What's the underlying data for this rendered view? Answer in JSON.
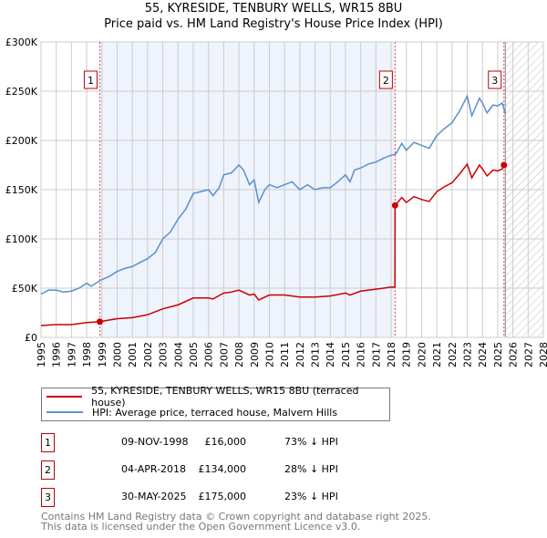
{
  "chart_data": {
    "type": "line",
    "title": "55, KYRESIDE, TENBURY WELLS, WR15 8BU",
    "subtitle": "Price paid vs. HM Land Registry's House Price Index (HPI)",
    "xlim": [
      1995,
      2028
    ],
    "ylim": [
      0,
      300000
    ],
    "x_ticks": [
      "1995",
      "1996",
      "1997",
      "1998",
      "1999",
      "2000",
      "2001",
      "2002",
      "2003",
      "2004",
      "2005",
      "2006",
      "2007",
      "2008",
      "2009",
      "2010",
      "2011",
      "2012",
      "2013",
      "2014",
      "2015",
      "2016",
      "2017",
      "2018",
      "2019",
      "2020",
      "2021",
      "2022",
      "2023",
      "2024",
      "2025",
      "2026",
      "2027",
      "2028"
    ],
    "y_ticks": [
      {
        "v": 0,
        "label": "£0"
      },
      {
        "v": 50000,
        "label": "£50K"
      },
      {
        "v": 100000,
        "label": "£100K"
      },
      {
        "v": 150000,
        "label": "£150K"
      },
      {
        "v": 200000,
        "label": "£200K"
      },
      {
        "v": 250000,
        "label": "£250K"
      },
      {
        "v": 300000,
        "label": "£300K"
      }
    ],
    "grid": true,
    "shaded_between_sales": [
      1998.86,
      2018.26
    ],
    "forecast_hatch_from": 2025.5,
    "series": [
      {
        "name": "55, KYRESIDE, TENBURY WELLS, WR15 8BU (terraced house)",
        "color": "#cc0000",
        "points": [
          [
            1995,
            12
          ],
          [
            1996,
            13
          ],
          [
            1997,
            13
          ],
          [
            1998,
            15
          ],
          [
            1998.86,
            16
          ],
          [
            2000,
            19
          ],
          [
            2001,
            20
          ],
          [
            2002,
            23
          ],
          [
            2003,
            29
          ],
          [
            2004,
            33
          ],
          [
            2005,
            40
          ],
          [
            2006,
            40
          ],
          [
            2006.3,
            39
          ],
          [
            2007,
            45
          ],
          [
            2007.5,
            46
          ],
          [
            2008,
            48
          ],
          [
            2008.7,
            43
          ],
          [
            2009,
            44
          ],
          [
            2009.3,
            38
          ],
          [
            2010,
            43
          ],
          [
            2011,
            43
          ],
          [
            2012,
            41
          ],
          [
            2013,
            41
          ],
          [
            2014,
            42
          ],
          [
            2015,
            45
          ],
          [
            2015.3,
            43
          ],
          [
            2016,
            47
          ],
          [
            2017,
            49
          ],
          [
            2018,
            51
          ],
          [
            2018.25,
            51
          ],
          [
            2018.26,
            134
          ],
          [
            2018.7,
            142
          ],
          [
            2019,
            137
          ],
          [
            2019.5,
            143
          ],
          [
            2020,
            140
          ],
          [
            2020.5,
            138
          ],
          [
            2021,
            148
          ],
          [
            2021.5,
            153
          ],
          [
            2022,
            157
          ],
          [
            2022.5,
            166
          ],
          [
            2023,
            176
          ],
          [
            2023.3,
            162
          ],
          [
            2023.8,
            175
          ],
          [
            2024,
            171
          ],
          [
            2024.3,
            164
          ],
          [
            2024.7,
            170
          ],
          [
            2025,
            169
          ],
          [
            2025.3,
            171
          ],
          [
            2025.41,
            175
          ],
          [
            2025.5,
            175
          ]
        ]
      },
      {
        "name": "HPI: Average price, terraced house, Malvern Hills",
        "color": "#5b8fd0",
        "points": [
          [
            1995,
            44
          ],
          [
            1995.5,
            48
          ],
          [
            1996,
            48
          ],
          [
            1996.5,
            46
          ],
          [
            1997,
            47
          ],
          [
            1997.5,
            50
          ],
          [
            1998,
            55
          ],
          [
            1998.3,
            52
          ],
          [
            1998.9,
            58
          ],
          [
            1999.5,
            62
          ],
          [
            2000,
            67
          ],
          [
            2000.5,
            70
          ],
          [
            2001,
            72
          ],
          [
            2001.5,
            76
          ],
          [
            2002,
            80
          ],
          [
            2002.5,
            86
          ],
          [
            2003,
            100
          ],
          [
            2003.5,
            107
          ],
          [
            2004,
            120
          ],
          [
            2004.5,
            130
          ],
          [
            2005,
            146
          ],
          [
            2005.5,
            148
          ],
          [
            2006,
            150
          ],
          [
            2006.3,
            144
          ],
          [
            2006.7,
            152
          ],
          [
            2007,
            165
          ],
          [
            2007.5,
            167
          ],
          [
            2008,
            175
          ],
          [
            2008.3,
            170
          ],
          [
            2008.7,
            155
          ],
          [
            2009,
            160
          ],
          [
            2009.3,
            137
          ],
          [
            2009.7,
            150
          ],
          [
            2010,
            155
          ],
          [
            2010.5,
            152
          ],
          [
            2011,
            155
          ],
          [
            2011.5,
            158
          ],
          [
            2012,
            150
          ],
          [
            2012.5,
            155
          ],
          [
            2013,
            150
          ],
          [
            2013.5,
            152
          ],
          [
            2014,
            152
          ],
          [
            2014.5,
            158
          ],
          [
            2015,
            165
          ],
          [
            2015.3,
            158
          ],
          [
            2015.6,
            170
          ],
          [
            2016,
            172
          ],
          [
            2016.5,
            176
          ],
          [
            2017,
            178
          ],
          [
            2017.5,
            182
          ],
          [
            2018,
            185
          ],
          [
            2018.3,
            186
          ],
          [
            2018.7,
            197
          ],
          [
            2019,
            190
          ],
          [
            2019.5,
            198
          ],
          [
            2020,
            195
          ],
          [
            2020.5,
            192
          ],
          [
            2021,
            205
          ],
          [
            2021.5,
            212
          ],
          [
            2022,
            218
          ],
          [
            2022.5,
            230
          ],
          [
            2023,
            245
          ],
          [
            2023.3,
            225
          ],
          [
            2023.8,
            243
          ],
          [
            2024,
            238
          ],
          [
            2024.3,
            228
          ],
          [
            2024.7,
            236
          ],
          [
            2025,
            235
          ],
          [
            2025.3,
            238
          ],
          [
            2025.5,
            227
          ]
        ]
      }
    ],
    "sales": [
      {
        "num": "1",
        "x": 1998.86,
        "price": 16000,
        "date": "09-NOV-1998",
        "price_label": "£16,000",
        "hpi": "73% ↓ HPI"
      },
      {
        "num": "2",
        "x": 2018.26,
        "price": 134000,
        "date": "04-APR-2018",
        "price_label": "£134,000",
        "hpi": "28% ↓ HPI"
      },
      {
        "num": "3",
        "x": 2025.41,
        "price": 175000,
        "date": "30-MAY-2025",
        "price_label": "£175,000",
        "hpi": "23% ↓ HPI"
      }
    ]
  },
  "footer": {
    "line1": "Contains HM Land Registry data © Crown copyright and database right 2025.",
    "line2": "This data is licensed under the Open Government Licence v3.0."
  }
}
